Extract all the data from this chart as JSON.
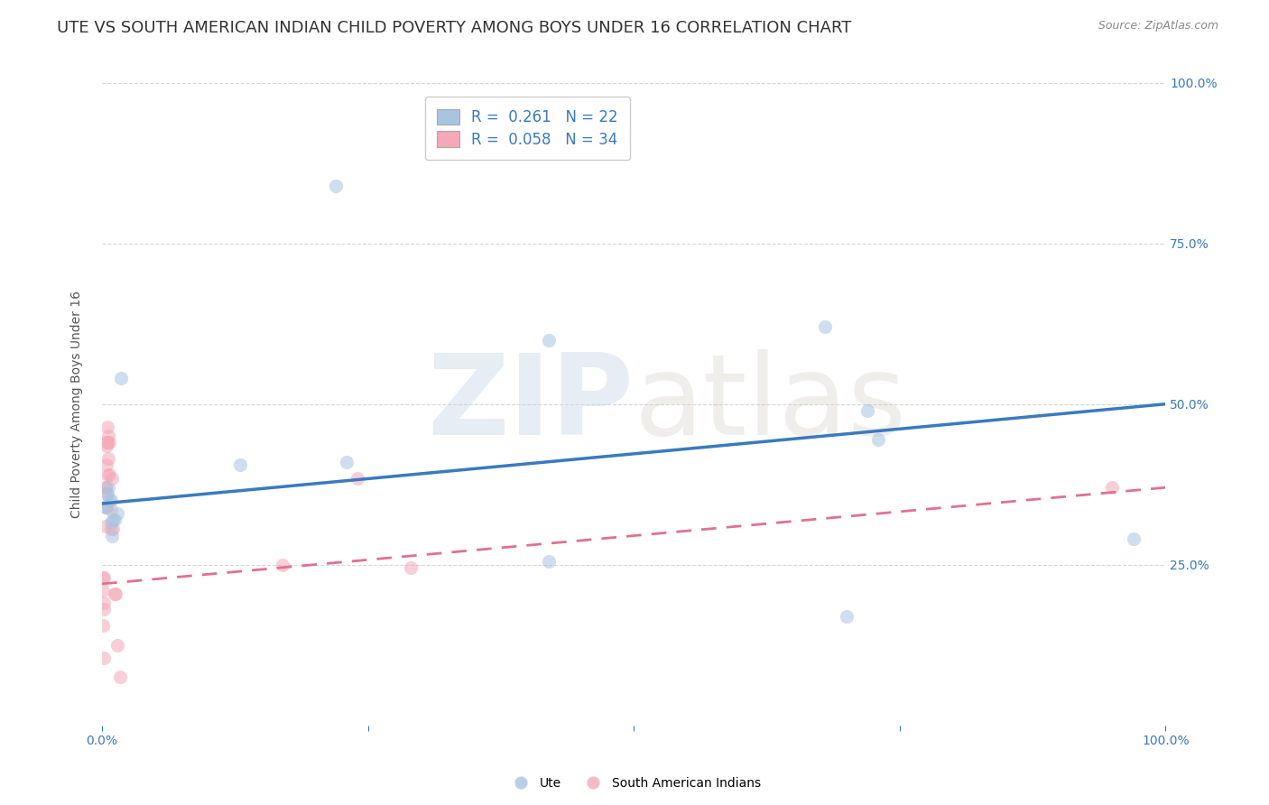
{
  "title": "UTE VS SOUTH AMERICAN INDIAN CHILD POVERTY AMONG BOYS UNDER 16 CORRELATION CHART",
  "source": "Source: ZipAtlas.com",
  "ylabel": "Child Poverty Among Boys Under 16",
  "ute_R": 0.261,
  "ute_N": 22,
  "sai_R": 0.058,
  "sai_N": 34,
  "ute_color": "#a8c4e0",
  "sai_color": "#f4a8b8",
  "ute_line_color": "#3a7abf",
  "sai_line_color": "#e07090",
  "background_color": "#ffffff",
  "grid_color": "#cccccc",
  "watermark_zip": "ZIP",
  "watermark_atlas": "atlas",
  "ute_points_x": [
    0.003,
    0.004,
    0.005,
    0.006,
    0.007,
    0.008,
    0.008,
    0.009,
    0.01,
    0.012,
    0.014,
    0.018,
    0.13,
    0.22,
    0.23,
    0.42,
    0.42,
    0.68,
    0.7,
    0.72,
    0.73,
    0.97
  ],
  "ute_points_y": [
    0.34,
    0.34,
    0.36,
    0.37,
    0.35,
    0.35,
    0.315,
    0.295,
    0.32,
    0.32,
    0.33,
    0.54,
    0.405,
    0.84,
    0.41,
    0.6,
    0.255,
    0.62,
    0.17,
    0.49,
    0.445,
    0.29
  ],
  "sai_points_x": [
    0.001,
    0.001,
    0.001,
    0.002,
    0.002,
    0.002,
    0.002,
    0.003,
    0.003,
    0.003,
    0.003,
    0.004,
    0.004,
    0.004,
    0.004,
    0.005,
    0.005,
    0.005,
    0.006,
    0.006,
    0.007,
    0.007,
    0.008,
    0.008,
    0.009,
    0.01,
    0.012,
    0.013,
    0.014,
    0.017,
    0.17,
    0.24,
    0.29,
    0.95
  ],
  "sai_points_y": [
    0.23,
    0.21,
    0.155,
    0.23,
    0.19,
    0.18,
    0.105,
    0.37,
    0.37,
    0.34,
    0.31,
    0.44,
    0.435,
    0.405,
    0.36,
    0.465,
    0.44,
    0.39,
    0.45,
    0.415,
    0.44,
    0.39,
    0.335,
    0.305,
    0.385,
    0.305,
    0.205,
    0.205,
    0.125,
    0.075,
    0.25,
    0.385,
    0.245,
    0.37
  ],
  "ute_line_x0": 0.0,
  "ute_line_y0": 0.345,
  "ute_line_x1": 1.0,
  "ute_line_y1": 0.5,
  "sai_line_x0": 0.0,
  "sai_line_y0": 0.22,
  "sai_line_x1": 1.0,
  "sai_line_y1": 0.37,
  "xlim": [
    0.0,
    1.0
  ],
  "ylim": [
    0.0,
    1.0
  ],
  "xticks": [
    0.0,
    0.25,
    0.5,
    0.75,
    1.0
  ],
  "xticklabels": [
    "0.0%",
    "",
    "",
    "",
    "100.0%"
  ],
  "yticks": [
    0.0,
    0.25,
    0.5,
    0.75,
    1.0
  ],
  "right_yticklabels": [
    "",
    "25.0%",
    "50.0%",
    "75.0%",
    "100.0%"
  ],
  "title_fontsize": 13,
  "label_fontsize": 10,
  "tick_fontsize": 10,
  "legend_fontsize": 12,
  "marker_size": 120,
  "marker_alpha": 0.55,
  "title_color": "#333333",
  "axis_tick_color": "#3a7abf"
}
